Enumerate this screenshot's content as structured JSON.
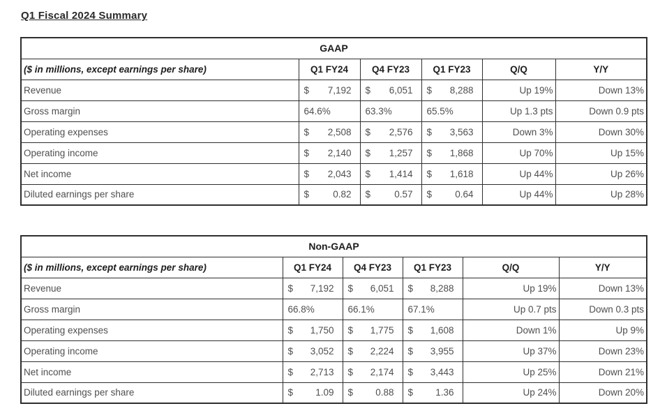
{
  "page": {
    "title": "Q1 Fiscal 2024 Summary"
  },
  "colors": {
    "background": "#ffffff",
    "border": "#2e2e2e",
    "heading_text": "#1d1d1d",
    "body_text": "#4f4f4f"
  },
  "tables": [
    {
      "title": "GAAP",
      "row_header_label": "($ in millions, except earnings per share)",
      "columns": [
        "Q1 FY24",
        "Q4 FY23",
        "Q1 FY23",
        "Q/Q",
        "Y/Y"
      ],
      "rows": [
        {
          "label": "Revenue",
          "values": [
            {
              "currency": "$",
              "amount": "7,192"
            },
            {
              "currency": "$",
              "amount": "6,051"
            },
            {
              "currency": "$",
              "amount": "8,288"
            }
          ],
          "qq": "Up 19%",
          "yy": "Down 13%"
        },
        {
          "label": "Gross margin",
          "values": [
            {
              "amount": "64.6%"
            },
            {
              "amount": "63.3%"
            },
            {
              "amount": "65.5%"
            }
          ],
          "qq": "Up 1.3 pts",
          "yy": "Down 0.9 pts"
        },
        {
          "label": "Operating expenses",
          "values": [
            {
              "currency": "$",
              "amount": "2,508"
            },
            {
              "currency": "$",
              "amount": "2,576"
            },
            {
              "currency": "$",
              "amount": "3,563"
            }
          ],
          "qq": "Down 3%",
          "yy": "Down 30%"
        },
        {
          "label": "Operating income",
          "values": [
            {
              "currency": "$",
              "amount": "2,140"
            },
            {
              "currency": "$",
              "amount": "1,257"
            },
            {
              "currency": "$",
              "amount": "1,868"
            }
          ],
          "qq": "Up 70%",
          "yy": "Up 15%"
        },
        {
          "label": "Net income",
          "values": [
            {
              "currency": "$",
              "amount": "2,043"
            },
            {
              "currency": "$",
              "amount": "1,414"
            },
            {
              "currency": "$",
              "amount": "1,618"
            }
          ],
          "qq": "Up 44%",
          "yy": "Up 26%"
        },
        {
          "label": "Diluted earnings per share",
          "values": [
            {
              "currency": "$",
              "amount": "0.82"
            },
            {
              "currency": "$",
              "amount": "0.57"
            },
            {
              "currency": "$",
              "amount": "0.64"
            }
          ],
          "qq": "Up 44%",
          "yy": "Up 28%"
        }
      ]
    },
    {
      "title": "Non-GAAP",
      "row_header_label": "($ in millions, except earnings per share)",
      "columns": [
        "Q1 FY24",
        "Q4 FY23",
        "Q1 FY23",
        "Q/Q",
        "Y/Y"
      ],
      "rows": [
        {
          "label": "Revenue",
          "values": [
            {
              "currency": "$",
              "amount": "7,192"
            },
            {
              "currency": "$",
              "amount": "6,051"
            },
            {
              "currency": "$",
              "amount": "8,288"
            }
          ],
          "qq": "Up 19%",
          "yy": "Down 13%"
        },
        {
          "label": "Gross margin",
          "values": [
            {
              "amount": "66.8%"
            },
            {
              "amount": "66.1%"
            },
            {
              "amount": "67.1%"
            }
          ],
          "qq": "Up 0.7 pts",
          "yy": "Down 0.3 pts"
        },
        {
          "label": "Operating expenses",
          "values": [
            {
              "currency": "$",
              "amount": "1,750"
            },
            {
              "currency": "$",
              "amount": "1,775"
            },
            {
              "currency": "$",
              "amount": "1,608"
            }
          ],
          "qq": "Down 1%",
          "yy": "Up 9%"
        },
        {
          "label": "Operating income",
          "values": [
            {
              "currency": "$",
              "amount": "3,052"
            },
            {
              "currency": "$",
              "amount": "2,224"
            },
            {
              "currency": "$",
              "amount": "3,955"
            }
          ],
          "qq": "Up 37%",
          "yy": "Down 23%"
        },
        {
          "label": "Net income",
          "values": [
            {
              "currency": "$",
              "amount": "2,713"
            },
            {
              "currency": "$",
              "amount": "2,174"
            },
            {
              "currency": "$",
              "amount": "3,443"
            }
          ],
          "qq": "Up 25%",
          "yy": "Down 21%"
        },
        {
          "label": "Diluted earnings per share",
          "values": [
            {
              "currency": "$",
              "amount": "1.09"
            },
            {
              "currency": "$",
              "amount": "0.88"
            },
            {
              "currency": "$",
              "amount": "1.36"
            }
          ],
          "qq": "Up 24%",
          "yy": "Down 20%"
        }
      ]
    }
  ]
}
